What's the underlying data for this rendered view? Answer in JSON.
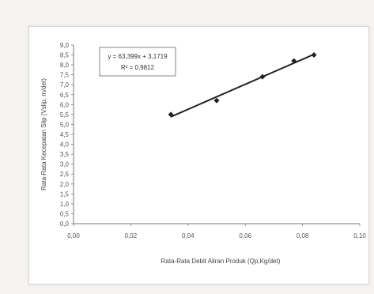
{
  "chart_data": {
    "type": "scatter",
    "xlabel": "Rata-Rata Debit Aliran Produk (Qp,Kg/det)",
    "ylabel": "Rata-Rata Kecepatan Slip (Vslip, m/det)",
    "xlim": [
      0,
      0.1
    ],
    "ylim": [
      0,
      9.0
    ],
    "x_ticks": [
      "0,00",
      "0,02",
      "0,04",
      "0,06",
      "0,08",
      "0,10"
    ],
    "x_tick_values": [
      0,
      0.02,
      0.04,
      0.06,
      0.08,
      0.1
    ],
    "y_ticks": [
      "0,0",
      "0,5",
      "1,0",
      "1,5",
      "2,0",
      "2,5",
      "3,0",
      "3,5",
      "4,0",
      "4,5",
      "5,0",
      "5,5",
      "6,0",
      "6,5",
      "7,0",
      "7,5",
      "8,0",
      "8,5",
      "9,0"
    ],
    "y_tick_values": [
      0,
      0.5,
      1,
      1.5,
      2,
      2.5,
      3,
      3.5,
      4,
      4.5,
      5,
      5.5,
      6,
      6.5,
      7,
      7.5,
      8,
      8.5,
      9
    ],
    "points": [
      {
        "x": 0.034,
        "y": 5.5
      },
      {
        "x": 0.05,
        "y": 6.2
      },
      {
        "x": 0.066,
        "y": 7.4
      },
      {
        "x": 0.077,
        "y": 8.2
      },
      {
        "x": 0.084,
        "y": 8.5
      }
    ],
    "trendline": {
      "x_start": 0.034,
      "x_end": 0.084
    },
    "equation": "y = 63,399x + 3,1719",
    "r_squared": "R² = 0,9812",
    "grid": false,
    "colors": {
      "series": "#222222",
      "axis": "#555555"
    }
  }
}
